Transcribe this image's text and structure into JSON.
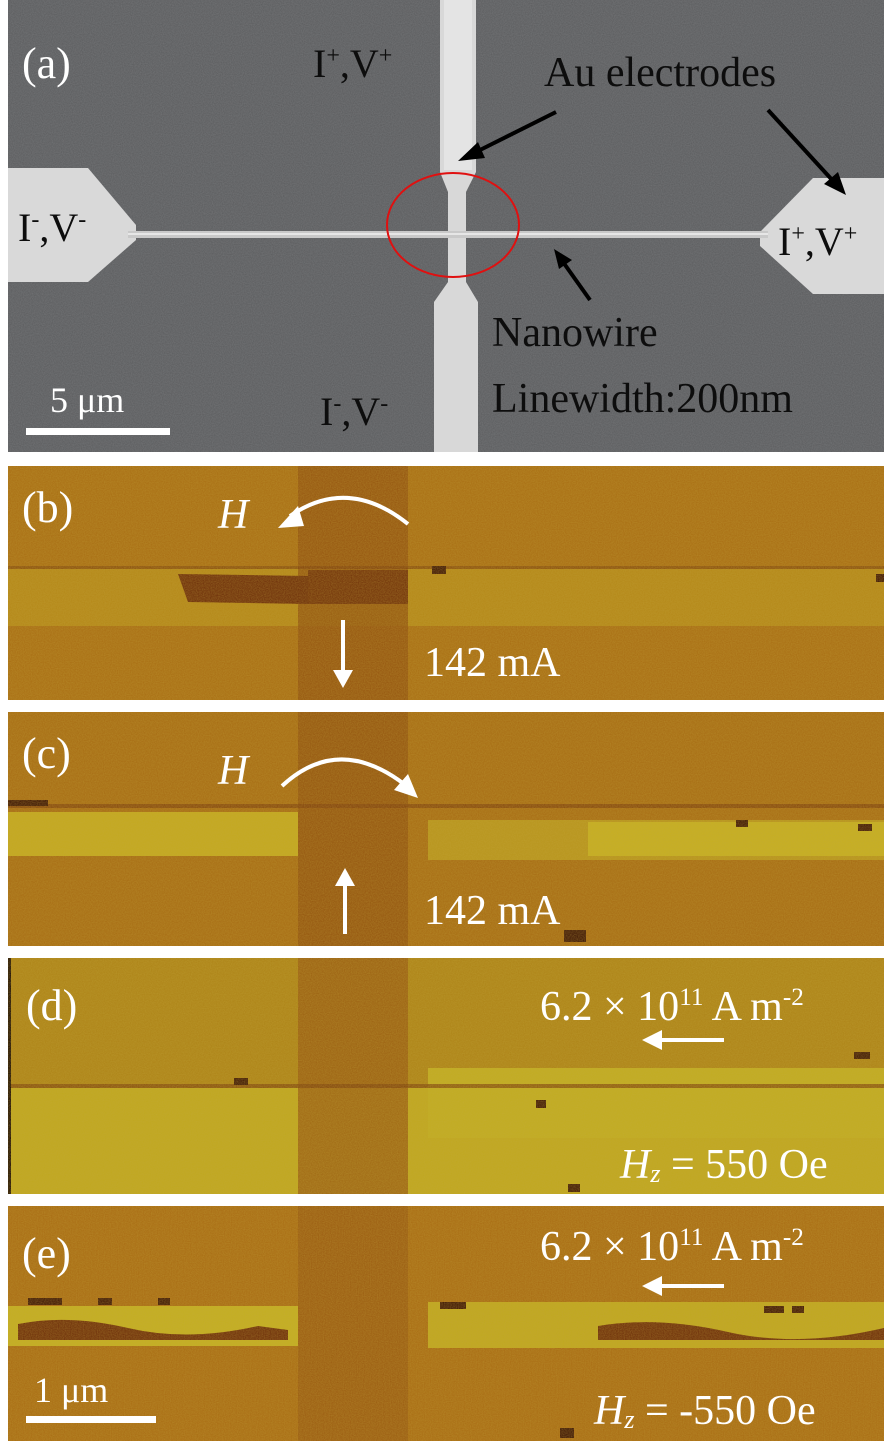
{
  "panel_a": {
    "label": "(a)",
    "top_electrode": {
      "base": "I",
      "sup1": "+",
      "mid": ",V",
      "sup2": "+"
    },
    "bottom_electrode": {
      "base": "I",
      "sup1": "-",
      "mid": ",V",
      "sup2": "-"
    },
    "left_electrode": {
      "base": "I",
      "sup1": "-",
      "mid": ",V",
      "sup2": "-"
    },
    "right_electrode": {
      "base": "I",
      "sup1": "+",
      "mid": ",V",
      "sup2": "+"
    },
    "au_label": "Au electrodes",
    "nanowire_label": "Nanowire",
    "linewidth_label": "Linewidth:200nm",
    "scalebar_label": "5 μm"
  },
  "panel_b": {
    "label": "(b)",
    "field": "H",
    "current": "142 mA"
  },
  "panel_c": {
    "label": "(c)",
    "field": "H",
    "current": "142 mA"
  },
  "panel_d": {
    "label": "(d)",
    "density_prefix": "6.2 × 10",
    "density_exp": "11",
    "density_unit": " A m",
    "density_unit_exp": "-2",
    "hz_symbol": "H",
    "hz_sub": "z",
    "hz_value": " = 550 Oe"
  },
  "panel_e": {
    "label": "(e)",
    "density_prefix": "6.2 × 10",
    "density_exp": "11",
    "density_unit": " A m",
    "density_unit_exp": "-2",
    "hz_symbol": "H",
    "hz_sub": "z",
    "hz_value": " = -550 Oe",
    "scalebar_label": "1 μm"
  },
  "colors": {
    "sem_background": "#5a5b5d",
    "electrode": "#d9d9d9",
    "circle": "#e01010",
    "moke_dark": "#7a3a0c",
    "moke_mid": "#a66a12",
    "moke_light": "#c9b520",
    "text": "#ffffff"
  }
}
